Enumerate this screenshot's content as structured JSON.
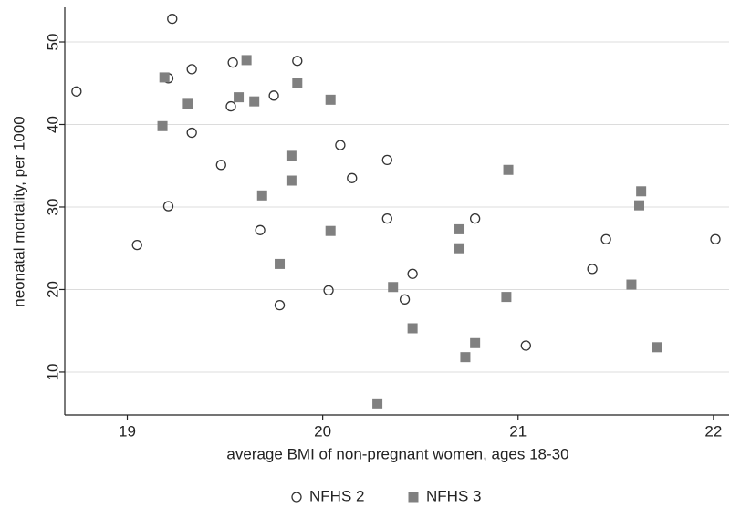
{
  "chart_data": {
    "type": "scatter",
    "xlabel": "average BMI of non-pregnant women, ages 18-30",
    "ylabel": "neonatal mortality, per 1000",
    "xlim": [
      18.68,
      22.08
    ],
    "ylim": [
      4.8,
      54.2
    ],
    "xticks": [
      19,
      20,
      21,
      22
    ],
    "yticks": [
      10,
      20,
      30,
      40,
      50
    ],
    "grid": true,
    "legend": "bottom",
    "series": [
      {
        "name": "NFHS 2",
        "color": "#333333",
        "marker": "circle",
        "x": [
          18.74,
          19.23,
          19.21,
          19.33,
          19.54,
          19.87,
          19.75,
          19.53,
          19.33,
          19.48,
          20.09,
          20.15,
          20.33,
          19.21,
          19.05,
          19.68,
          20.33,
          20.78,
          21.45,
          22.01,
          21.38,
          20.46,
          20.42,
          20.03,
          19.78,
          21.04
        ],
        "values": [
          44.0,
          52.8,
          45.6,
          46.7,
          47.5,
          47.7,
          43.5,
          42.2,
          39.0,
          35.1,
          37.5,
          33.5,
          35.7,
          30.1,
          25.4,
          27.2,
          28.6,
          28.6,
          26.1,
          26.1,
          22.5,
          21.9,
          18.8,
          19.9,
          18.1,
          13.2
        ]
      },
      {
        "name": "NFHS 3",
        "color": "#808080",
        "marker": "square",
        "x": [
          19.19,
          19.61,
          19.87,
          19.57,
          19.65,
          20.04,
          19.31,
          19.18,
          19.84,
          19.84,
          19.69,
          20.95,
          21.63,
          21.62,
          20.04,
          20.7,
          20.7,
          19.78,
          20.36,
          21.58,
          20.94,
          20.46,
          20.78,
          20.73,
          21.71,
          20.28
        ],
        "values": [
          45.7,
          47.8,
          45.0,
          43.3,
          42.8,
          43.0,
          42.5,
          39.8,
          36.2,
          33.2,
          31.4,
          34.5,
          31.9,
          30.2,
          27.1,
          27.3,
          25.0,
          23.1,
          20.3,
          20.6,
          19.1,
          15.3,
          13.5,
          11.8,
          13.0,
          6.2
        ]
      }
    ]
  }
}
